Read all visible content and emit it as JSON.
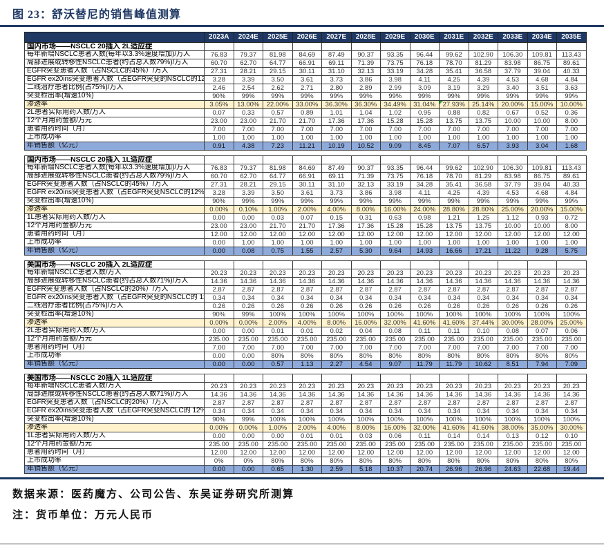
{
  "figure_title": "图 23：舒沃替尼的销售峰值测算",
  "columns": [
    "2023A",
    "2024E",
    "2025E",
    "2026E",
    "2027E",
    "2028E",
    "2029E",
    "2030E",
    "2031E",
    "2032E",
    "2033E",
    "2034E",
    "2035E"
  ],
  "colors": {
    "header_bg": "#1F3864",
    "title_color": "#1F3864",
    "penetration_row_bg": "#FFF2CC",
    "total_row_bg": "#8EAADB",
    "flag_marker_green": "#3BA13B"
  },
  "sections": [
    {
      "title": "国内市场——NSCLC 20插入 2L适应症",
      "rows": [
        {
          "label": "每年新增NSCLC患者人数(每年以3.3%速度增加)/万人",
          "style": "normal",
          "values": [
            "76.83",
            "79.37",
            "81.98",
            "84.69",
            "87.49",
            "90.37",
            "93.35",
            "96.44",
            "99.62",
            "102.90",
            "106.30",
            "109.81",
            "113.43"
          ]
        },
        {
          "label": "局部进展或转移性NSCLC患者(约占总人数79%)/万人",
          "style": "normal",
          "values": [
            "60.70",
            "62.70",
            "64.77",
            "66.91",
            "69.11",
            "71.39",
            "73.75",
            "76.18",
            "78.70",
            "81.29",
            "83.98",
            "86.75",
            "89.61"
          ]
        },
        {
          "label": "EGFR突变患者人数（占NSCLC的45%）/万人",
          "style": "normal",
          "values": [
            "27.31",
            "28.21",
            "29.15",
            "30.11",
            "31.10",
            "32.13",
            "33.19",
            "34.28",
            "35.41",
            "36.58",
            "37.79",
            "39.04",
            "40.33"
          ]
        },
        {
          "label": "EGFR ex20ins突变患者人数（占EGFR突变的NSCLC的12%）/万人",
          "style": "normal",
          "values": [
            "3.28",
            "3.39",
            "3.50",
            "3.61",
            "3.73",
            "3.86",
            "3.98",
            "4.11",
            "4.25",
            "4.39",
            "4.53",
            "4.68",
            "4.84"
          ]
        },
        {
          "label": "二线治疗患者比例(占75%)/万人",
          "style": "normal",
          "values": [
            "2.46",
            "2.54",
            "2.62",
            "2.71",
            "2.80",
            "2.89",
            "2.99",
            "3.09",
            "3.19",
            "3.29",
            "3.40",
            "3.51",
            "3.63"
          ]
        },
        {
          "label": "突变检出率(增速10%)",
          "style": "normal",
          "values": [
            "90%",
            "99%",
            "99%",
            "99%",
            "99%",
            "99%",
            "99%",
            "99%",
            "99%",
            "99%",
            "99%",
            "99%",
            "99%"
          ]
        },
        {
          "label": "渗透率",
          "style": "penetration",
          "flag_col": 8,
          "values": [
            "3.05%",
            "13.00%",
            "22.00%",
            "33.00%",
            "36.30%",
            "36.30%",
            "34.49%",
            "31.04%",
            "27.93%",
            "25.14%",
            "20.00%",
            "15.00%",
            "10.00%"
          ]
        },
        {
          "label": "2L患者实际用药人数/万人",
          "style": "normal",
          "values": [
            "0.07",
            "0.33",
            "0.57",
            "0.89",
            "1.01",
            "1.04",
            "1.02",
            "0.95",
            "0.88",
            "0.82",
            "0.67",
            "0.52",
            "0.36"
          ]
        },
        {
          "label": "12个月用药金额/万元",
          "style": "normal",
          "values": [
            "23.00",
            "23.00",
            "21.70",
            "21.70",
            "17.36",
            "17.36",
            "15.28",
            "15.28",
            "13.75",
            "13.75",
            "10.00",
            "10.00",
            "8.00"
          ]
        },
        {
          "label": "患者用药时间（月）",
          "style": "normal",
          "values": [
            "7.00",
            "7.00",
            "7.00",
            "7.00",
            "7.00",
            "7.00",
            "7.00",
            "7.00",
            "7.00",
            "7.00",
            "7.00",
            "7.00",
            "7.00"
          ]
        },
        {
          "label": "上市成功率",
          "style": "normal",
          "values": [
            "1.00",
            "1.00",
            "1.00",
            "1.00",
            "1.00",
            "1.00",
            "1.00",
            "1.00",
            "1.00",
            "1.00",
            "1.00",
            "1.00",
            "1.00"
          ]
        },
        {
          "label": "年销售额（亿元）",
          "style": "total",
          "values": [
            "0.91",
            "4.38",
            "7.23",
            "11.21",
            "10.19",
            "10.52",
            "9.09",
            "8.45",
            "7.07",
            "6.57",
            "3.93",
            "3.04",
            "1.68"
          ]
        }
      ]
    },
    {
      "title": "国内市场——NSCLC 20插入 1L适应症",
      "rows": [
        {
          "label": "每年新增NSCLC患者人数(每年以3.3%速度增加)/万人",
          "style": "normal",
          "values": [
            "76.83",
            "79.37",
            "81.98",
            "84.69",
            "87.49",
            "90.37",
            "93.35",
            "96.44",
            "99.62",
            "102.90",
            "106.30",
            "109.81",
            "113.43"
          ]
        },
        {
          "label": "局部进展或转移性NSCLC患者(约占总人数79%)/万人",
          "style": "normal",
          "values": [
            "60.70",
            "62.70",
            "64.77",
            "66.91",
            "69.11",
            "71.39",
            "73.75",
            "76.18",
            "78.70",
            "81.29",
            "83.98",
            "86.75",
            "89.61"
          ]
        },
        {
          "label": "EGFR突变患者人数（占NSCLC的45%）/万人",
          "style": "normal",
          "values": [
            "27.31",
            "28.21",
            "29.15",
            "30.11",
            "31.10",
            "32.13",
            "33.19",
            "34.28",
            "35.41",
            "36.58",
            "37.79",
            "39.04",
            "40.33"
          ]
        },
        {
          "label": "EGFR ex20ins突变患者人数（占EGFR突变NSCLC的12%）/万人",
          "style": "normal",
          "values": [
            "3.28",
            "3.39",
            "3.50",
            "3.61",
            "3.73",
            "3.86",
            "3.98",
            "4.11",
            "4.25",
            "4.39",
            "4.53",
            "4.68",
            "4.84"
          ]
        },
        {
          "label": "突变检出率(增速10%)",
          "style": "normal",
          "values": [
            "90%",
            "99%",
            "99%",
            "99%",
            "99%",
            "99%",
            "99%",
            "99%",
            "99%",
            "99%",
            "99%",
            "99%",
            "99%"
          ]
        },
        {
          "label": "渗透率",
          "style": "penetration",
          "values": [
            "0.00%",
            "0.10%",
            "1.00%",
            "2.00%",
            "4.00%",
            "8.00%",
            "16.00%",
            "24.00%",
            "28.80%",
            "28.80%",
            "25.00%",
            "20.00%",
            "15.00%"
          ]
        },
        {
          "label": "1L患者实际用药人数/万人",
          "style": "normal",
          "values": [
            "0.00",
            "0.00",
            "0.03",
            "0.07",
            "0.15",
            "0.31",
            "0.63",
            "0.98",
            "1.21",
            "1.25",
            "1.12",
            "0.93",
            "0.72"
          ]
        },
        {
          "label": "12个月用药金额/万元",
          "style": "normal",
          "values": [
            "23.00",
            "23.00",
            "21.70",
            "21.70",
            "17.36",
            "17.36",
            "15.28",
            "15.28",
            "13.75",
            "13.75",
            "10.00",
            "10.00",
            "8.00"
          ]
        },
        {
          "label": "患者用药时间（月）",
          "style": "normal",
          "values": [
            "12.00",
            "12.00",
            "12.00",
            "12.00",
            "12.00",
            "12.00",
            "12.00",
            "12.00",
            "12.00",
            "12.00",
            "12.00",
            "12.00",
            "12.00"
          ]
        },
        {
          "label": "上市成功率",
          "style": "normal",
          "values": [
            "0.00",
            "1.00",
            "1.00",
            "1.00",
            "1.00",
            "1.00",
            "1.00",
            "1.00",
            "1.00",
            "1.00",
            "1.00",
            "1.00",
            "1.00"
          ]
        },
        {
          "label": "年销售额（亿元）",
          "style": "total",
          "values": [
            "0.00",
            "0.08",
            "0.75",
            "1.55",
            "2.57",
            "5.30",
            "9.64",
            "14.93",
            "16.66",
            "17.21",
            "11.22",
            "9.28",
            "5.75"
          ]
        }
      ]
    },
    {
      "title": "美国市场——NSCLC 20插入 2L适应症",
      "rows": [
        {
          "label": "每年新增NSCLC患者人数/万人",
          "style": "normal",
          "values": [
            "20.23",
            "20.23",
            "20.23",
            "20.23",
            "20.23",
            "20.23",
            "20.23",
            "20.23",
            "20.23",
            "20.23",
            "20.23",
            "20.23",
            "20.23"
          ]
        },
        {
          "label": "局部进展或转移性NSCLC患者(约占总人数71%)/万人",
          "style": "normal",
          "values": [
            "14.36",
            "14.36",
            "14.36",
            "14.36",
            "14.36",
            "14.36",
            "14.36",
            "14.36",
            "14.36",
            "14.36",
            "14.36",
            "14.36",
            "14.36"
          ]
        },
        {
          "label": "EGFR突变患者人数（占NSCLC的20%）/万人",
          "style": "normal",
          "values": [
            "2.87",
            "2.87",
            "2.87",
            "2.87",
            "2.87",
            "2.87",
            "2.87",
            "2.87",
            "2.87",
            "2.87",
            "2.87",
            "2.87",
            "2.87"
          ]
        },
        {
          "label": "EGFR ex20ins突变患者人数（占EGFR突变的NSCLC的 12%）/万人",
          "style": "normal",
          "values": [
            "0.34",
            "0.34",
            "0.34",
            "0.34",
            "0.34",
            "0.34",
            "0.34",
            "0.34",
            "0.34",
            "0.34",
            "0.34",
            "0.34",
            "0.34"
          ]
        },
        {
          "label": "二线治疗患者比例(占75%)/万人",
          "style": "normal",
          "values": [
            "0.26",
            "0.26",
            "0.26",
            "0.26",
            "0.26",
            "0.26",
            "0.26",
            "0.26",
            "0.26",
            "0.26",
            "0.26",
            "0.26",
            "0.26"
          ]
        },
        {
          "label": "突变检出率(增速10%)",
          "style": "normal",
          "values": [
            "90%",
            "99%",
            "100%",
            "100%",
            "100%",
            "100%",
            "100%",
            "100%",
            "100%",
            "100%",
            "100%",
            "100%",
            "100%"
          ]
        },
        {
          "label": "渗透率",
          "style": "penetration",
          "values": [
            "0.00%",
            "0.00%",
            "2.00%",
            "4.00%",
            "8.00%",
            "16.00%",
            "32.00%",
            "41.60%",
            "41.60%",
            "37.44%",
            "30.00%",
            "28.00%",
            "25.00%"
          ]
        },
        {
          "label": "2L患者实际用药人数/万人",
          "style": "normal",
          "values": [
            "0.00",
            "0.00",
            "0.01",
            "0.01",
            "0.02",
            "0.04",
            "0.08",
            "0.11",
            "0.11",
            "0.10",
            "0.08",
            "0.07",
            "0.06"
          ]
        },
        {
          "label": "12个月用药金额/万元",
          "style": "normal",
          "values": [
            "235.00",
            "235.00",
            "235.00",
            "235.00",
            "235.00",
            "235.00",
            "235.00",
            "235.00",
            "235.00",
            "235.00",
            "235.00",
            "235.00",
            "235.00"
          ]
        },
        {
          "label": "患者用药时间（月）",
          "style": "normal",
          "values": [
            "7.00",
            "7.00",
            "7.00",
            "7.00",
            "7.00",
            "7.00",
            "7.00",
            "7.00",
            "7.00",
            "7.00",
            "7.00",
            "7.00",
            "7.00"
          ]
        },
        {
          "label": "上市成功率",
          "style": "normal",
          "values": [
            "0.00",
            "0.00",
            "80%",
            "80%",
            "80%",
            "80%",
            "80%",
            "80%",
            "80%",
            "80%",
            "80%",
            "80%",
            "80%"
          ]
        },
        {
          "label": "年销售额（亿元）",
          "style": "total",
          "values": [
            "0.00",
            "0.00",
            "0.57",
            "1.13",
            "2.27",
            "4.54",
            "9.07",
            "11.79",
            "11.79",
            "10.62",
            "8.51",
            "7.94",
            "7.09"
          ]
        }
      ]
    },
    {
      "title": "美国市场——NSCLC 20插入 1L适应症",
      "rows": [
        {
          "label": "每年新增NSCLC患者人数/万人",
          "style": "normal",
          "values": [
            "20.23",
            "20.23",
            "20.23",
            "20.23",
            "20.23",
            "20.23",
            "20.23",
            "20.23",
            "20.23",
            "20.23",
            "20.23",
            "20.23",
            "20.23"
          ]
        },
        {
          "label": "局部进展或转移性NSCLC患者(约占总人数71%)/万人",
          "style": "normal",
          "values": [
            "14.36",
            "14.36",
            "14.36",
            "14.36",
            "14.36",
            "14.36",
            "14.36",
            "14.36",
            "14.36",
            "14.36",
            "14.36",
            "14.36",
            "14.36"
          ]
        },
        {
          "label": "EGFR突变患者人数（占NSCLC的20%）/万人",
          "style": "normal",
          "values": [
            "2.87",
            "2.87",
            "2.87",
            "2.87",
            "2.87",
            "2.87",
            "2.87",
            "2.87",
            "2.87",
            "2.87",
            "2.87",
            "2.87",
            "2.87"
          ]
        },
        {
          "label": "EGFR ex20ins突变患者人数（占EGFR突变NSCLC的 12%）/万人",
          "style": "normal",
          "values": [
            "0.34",
            "0.34",
            "0.34",
            "0.34",
            "0.34",
            "0.34",
            "0.34",
            "0.34",
            "0.34",
            "0.34",
            "0.34",
            "0.34",
            "0.34"
          ]
        },
        {
          "label": "突变检出率(增速10%)",
          "style": "normal",
          "values": [
            "90%",
            "99%",
            "100%",
            "100%",
            "100%",
            "100%",
            "100%",
            "100%",
            "100%",
            "100%",
            "100%",
            "100%",
            "100%"
          ]
        },
        {
          "label": "渗透率",
          "style": "penetration",
          "values": [
            "0.00%",
            "0.00%",
            "1.00%",
            "2.00%",
            "4.00%",
            "8.00%",
            "16.00%",
            "32.00%",
            "41.60%",
            "41.60%",
            "38.00%",
            "35.00%",
            "30.00%"
          ]
        },
        {
          "label": "1L患者实际用药人数/万人",
          "style": "normal",
          "values": [
            "0.00",
            "0.00",
            "0.00",
            "0.01",
            "0.01",
            "0.03",
            "0.06",
            "0.11",
            "0.14",
            "0.14",
            "0.13",
            "0.12",
            "0.10"
          ]
        },
        {
          "label": "12个月用药金额/万元",
          "style": "normal",
          "values": [
            "235.00",
            "235.00",
            "235.00",
            "235.00",
            "235.00",
            "235.00",
            "235.00",
            "235.00",
            "235.00",
            "235.00",
            "235.00",
            "235.00",
            "235.00"
          ]
        },
        {
          "label": "患者用药时间（月）",
          "style": "normal",
          "values": [
            "12.00",
            "12.00",
            "12.00",
            "12.00",
            "12.00",
            "12.00",
            "12.00",
            "12.00",
            "12.00",
            "12.00",
            "12.00",
            "12.00",
            "12.00"
          ]
        },
        {
          "label": "上市成功率",
          "style": "normal",
          "values": [
            "0%",
            "0%",
            "80%",
            "80%",
            "80%",
            "80%",
            "80%",
            "80%",
            "80%",
            "80%",
            "80%",
            "80%",
            "80%"
          ]
        },
        {
          "label": "年销售额（亿元）",
          "style": "total",
          "values": [
            "0.00",
            "0.00",
            "0.65",
            "1.30",
            "2.59",
            "5.18",
            "10.37",
            "20.74",
            "26.96",
            "26.96",
            "24.63",
            "22.68",
            "19.44"
          ]
        }
      ]
    }
  ],
  "footer": {
    "source_line": "数据来源：医药魔方、公司公告、东吴证券研究所测算",
    "note_line": "注：货币单位：万元人民币"
  }
}
